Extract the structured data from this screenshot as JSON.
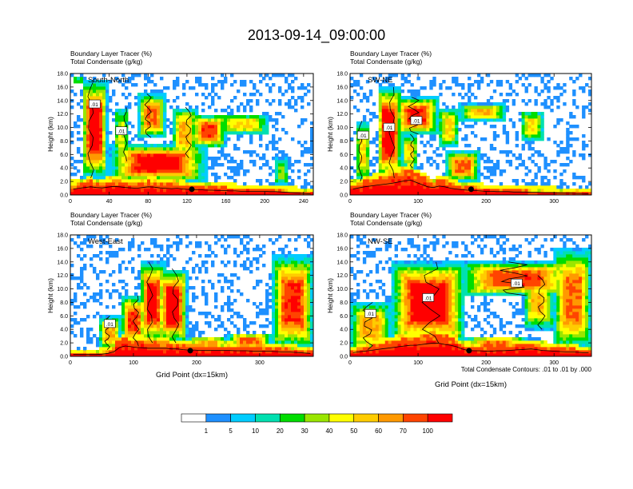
{
  "title": "2013-09-14_09:00:00",
  "colors": {
    "levels": [
      "#ffffff",
      "#1e90ff",
      "#00ccff",
      "#00e0b0",
      "#00dd00",
      "#9ae600",
      "#ffff00",
      "#ffcc00",
      "#ff9900",
      "#ff4400",
      "#ff0000"
    ],
    "contour": "#000000",
    "marker": "#000000"
  },
  "colorbar": {
    "labels": [
      "1",
      "5",
      "10",
      "20",
      "30",
      "40",
      "50",
      "60",
      "70",
      "100"
    ]
  },
  "footnote": "Total Condensate Contours: .01 to .01 by .000",
  "chart_data": [
    {
      "type": "heatmap",
      "subtitle_line1": "Boundary Layer Tracer    (%)",
      "subtitle_line2": "Total Condensate    (g/kg)",
      "section_label": "South-North",
      "ylabel": "Height (km)",
      "xlabel": "",
      "ylim": [
        0,
        18
      ],
      "yticks": [
        "0.0",
        "2.0",
        "4.0",
        "6.0",
        "8.0",
        "10.0",
        "12.0",
        "14.0",
        "16.0",
        "18.0"
      ],
      "xlim": [
        0,
        250
      ],
      "xticks": [
        "0",
        "40",
        "80",
        "120",
        "160",
        "200",
        "240"
      ],
      "marker_x": 125,
      "contour_labels": [
        ".01",
        ".01"
      ],
      "terrain_top_km": [
        1.6,
        1.8,
        2.0,
        2.2,
        2.0,
        1.9,
        2.1,
        2.3,
        2.2,
        2.0,
        1.9,
        1.8,
        2.0,
        2.2,
        2.1,
        1.9,
        1.8,
        1.7,
        1.8,
        1.6,
        1.5,
        1.4,
        1.4,
        1.3,
        1.3,
        1.2,
        1.2,
        1.1,
        1.1,
        1.0,
        1.0,
        1.0,
        1.0,
        1.0,
        0.9,
        0.9,
        0.8,
        0.7,
        0.6,
        0.5,
        0.4,
        0.3
      ],
      "cloud_cells": [
        {
          "x0": 12,
          "x1": 38,
          "base_km": 2.5,
          "top_km": 17.0,
          "core": 0.9
        },
        {
          "x0": 45,
          "x1": 60,
          "base_km": 5.0,
          "top_km": 13.0,
          "core": 0.4
        },
        {
          "x0": 70,
          "x1": 98,
          "base_km": 8.5,
          "top_km": 15.0,
          "core": 0.7
        },
        {
          "x0": 105,
          "x1": 130,
          "base_km": 5.5,
          "top_km": 13.0,
          "core": 0.6
        },
        {
          "x0": 150,
          "x1": 205,
          "base_km": 9.0,
          "top_km": 12.0,
          "core": 0.5
        },
        {
          "x0": 125,
          "x1": 160,
          "base_km": 7.0,
          "top_km": 12.0,
          "core": 0.75
        },
        {
          "x0": 210,
          "x1": 225,
          "base_km": 1.5,
          "top_km": 5.5,
          "core": 0.3
        },
        {
          "x0": 40,
          "x1": 140,
          "base_km": 2.0,
          "top_km": 7.5,
          "core": 0.85
        },
        {
          "x0": 2,
          "x1": 14,
          "base_km": 16.5,
          "top_km": 17.5,
          "core": 0.25
        }
      ]
    },
    {
      "type": "heatmap",
      "subtitle_line1": "Boundary Layer Tracer    (%)",
      "subtitle_line2": "Total Condensate    (g/kg)",
      "section_label": "SW-NE",
      "ylabel": "Height (km)",
      "xlabel": "",
      "ylim": [
        0,
        18
      ],
      "yticks": [
        "0.0",
        "2.0",
        "4.0",
        "6.0",
        "8.0",
        "10.0",
        "12.0",
        "14.0",
        "16.0",
        "18.0"
      ],
      "xlim": [
        0,
        355
      ],
      "xticks": [
        "0",
        "100",
        "200",
        "300"
      ],
      "marker_x": 178,
      "contour_labels": [
        ".01",
        ".01",
        ".01"
      ],
      "terrain_top_km": [
        1.6,
        1.9,
        2.2,
        2.4,
        2.6,
        2.8,
        3.0,
        3.2,
        3.5,
        3.8,
        4.0,
        3.4,
        2.8,
        2.2,
        2.0,
        2.4,
        2.2,
        1.8,
        1.6,
        1.4,
        1.3,
        1.2,
        1.1,
        1.0,
        1.0,
        0.9,
        0.9,
        0.9,
        0.8,
        0.8,
        0.8,
        0.7,
        0.7,
        0.6,
        0.6,
        0.6,
        0.5,
        0.5,
        0.5,
        0.4,
        0.4,
        0.3
      ],
      "cloud_cells": [
        {
          "x0": 8,
          "x1": 30,
          "base_km": 2.0,
          "top_km": 11.0,
          "core": 0.5
        },
        {
          "x0": 40,
          "x1": 75,
          "base_km": 2.5,
          "top_km": 16.0,
          "core": 0.95
        },
        {
          "x0": 65,
          "x1": 130,
          "base_km": 9.0,
          "top_km": 14.5,
          "core": 0.8
        },
        {
          "x0": 75,
          "x1": 100,
          "base_km": 4.0,
          "top_km": 9.0,
          "core": 0.5
        },
        {
          "x0": 130,
          "x1": 160,
          "base_km": 7.0,
          "top_km": 13.0,
          "core": 0.5
        },
        {
          "x0": 160,
          "x1": 230,
          "base_km": 11.0,
          "top_km": 13.5,
          "core": 0.55
        },
        {
          "x0": 140,
          "x1": 190,
          "base_km": 2.0,
          "top_km": 6.5,
          "core": 0.7
        },
        {
          "x0": 250,
          "x1": 285,
          "base_km": 8.0,
          "top_km": 12.5,
          "core": 0.45
        }
      ]
    },
    {
      "type": "heatmap",
      "subtitle_line1": "Boundary Layer Tracer    (%)",
      "subtitle_line2": "Total Condensate    (g/kg)",
      "section_label": "West-East",
      "ylabel": "Height (km)",
      "xlabel": "Grid Point (dx=15km)",
      "ylim": [
        0,
        18
      ],
      "yticks": [
        "0.0",
        "2.0",
        "4.0",
        "6.0",
        "8.0",
        "10.0",
        "12.0",
        "14.0",
        "16.0",
        "18.0"
      ],
      "xlim": [
        0,
        385
      ],
      "xticks": [
        "0",
        "100",
        "200",
        "300"
      ],
      "marker_x": 190,
      "contour_labels": [
        ".01"
      ],
      "terrain_top_km": [
        0.5,
        0.5,
        0.5,
        0.5,
        0.5,
        0.6,
        0.8,
        1.2,
        2.4,
        2.8,
        2.6,
        2.4,
        2.3,
        2.2,
        2.2,
        2.2,
        2.2,
        2.0,
        2.0,
        1.8,
        1.7,
        1.7,
        1.6,
        1.6,
        1.6,
        1.6,
        1.6,
        1.6,
        1.5,
        1.5,
        1.5,
        1.4,
        1.4,
        1.4,
        1.4,
        1.3,
        1.2,
        1.2,
        1.1,
        1.0,
        0.9,
        0.8
      ],
      "cloud_cells": [
        {
          "x0": 45,
          "x1": 80,
          "base_km": 1.0,
          "top_km": 6.0,
          "core": 0.6
        },
        {
          "x0": 80,
          "x1": 120,
          "base_km": 1.5,
          "top_km": 9.0,
          "core": 0.75
        },
        {
          "x0": 110,
          "x1": 150,
          "base_km": 2.0,
          "top_km": 14.0,
          "core": 0.85
        },
        {
          "x0": 140,
          "x1": 185,
          "base_km": 2.0,
          "top_km": 13.0,
          "core": 0.9
        },
        {
          "x0": 185,
          "x1": 250,
          "base_km": 1.0,
          "top_km": 3.0,
          "core": 0.6
        },
        {
          "x0": 250,
          "x1": 320,
          "base_km": 1.0,
          "top_km": 3.5,
          "core": 0.7
        },
        {
          "x0": 320,
          "x1": 385,
          "base_km": 1.0,
          "top_km": 15.0,
          "core": 0.8
        }
      ]
    },
    {
      "type": "heatmap",
      "subtitle_line1": "Boundary Layer Tracer    (%)",
      "subtitle_line2": "Total Condensate    (g/kg)",
      "section_label": "NW-SE",
      "ylabel": "Height (km)",
      "xlabel": "Grid Point (dx=15km)",
      "ylim": [
        0,
        18
      ],
      "yticks": [
        "0.0",
        "2.0",
        "4.0",
        "6.0",
        "8.0",
        "10.0",
        "12.0",
        "14.0",
        "16.0",
        "18.0"
      ],
      "xlim": [
        0,
        355
      ],
      "xticks": [
        "0",
        "100",
        "200",
        "300"
      ],
      "marker_x": 175,
      "contour_labels": [
        ".01",
        ".01",
        ".01"
      ],
      "terrain_top_km": [
        1.0,
        1.2,
        1.4,
        1.6,
        1.8,
        2.0,
        2.2,
        2.4,
        2.6,
        2.8,
        3.0,
        3.0,
        3.2,
        3.4,
        3.6,
        3.5,
        3.2,
        3.0,
        2.6,
        2.0,
        1.6,
        1.5,
        1.5,
        1.4,
        1.4,
        1.5,
        1.5,
        1.6,
        1.7,
        1.8,
        1.9,
        2.0,
        1.8,
        1.6,
        1.5,
        1.4,
        1.3,
        1.2,
        1.2,
        1.1,
        1.0,
        1.0
      ],
      "cloud_cells": [
        {
          "x0": 0,
          "x1": 60,
          "base_km": 1.0,
          "top_km": 8.0,
          "core": 0.6
        },
        {
          "x0": 60,
          "x1": 170,
          "base_km": 2.0,
          "top_km": 14.0,
          "core": 0.9
        },
        {
          "x0": 160,
          "x1": 330,
          "base_km": 9.0,
          "top_km": 14.0,
          "core": 0.75
        },
        {
          "x0": 255,
          "x1": 300,
          "base_km": 4.0,
          "top_km": 12.0,
          "core": 0.55
        },
        {
          "x0": 300,
          "x1": 355,
          "base_km": 1.0,
          "top_km": 16.0,
          "core": 0.7
        },
        {
          "x0": 170,
          "x1": 260,
          "base_km": 1.0,
          "top_km": 3.0,
          "core": 0.65
        }
      ]
    }
  ]
}
